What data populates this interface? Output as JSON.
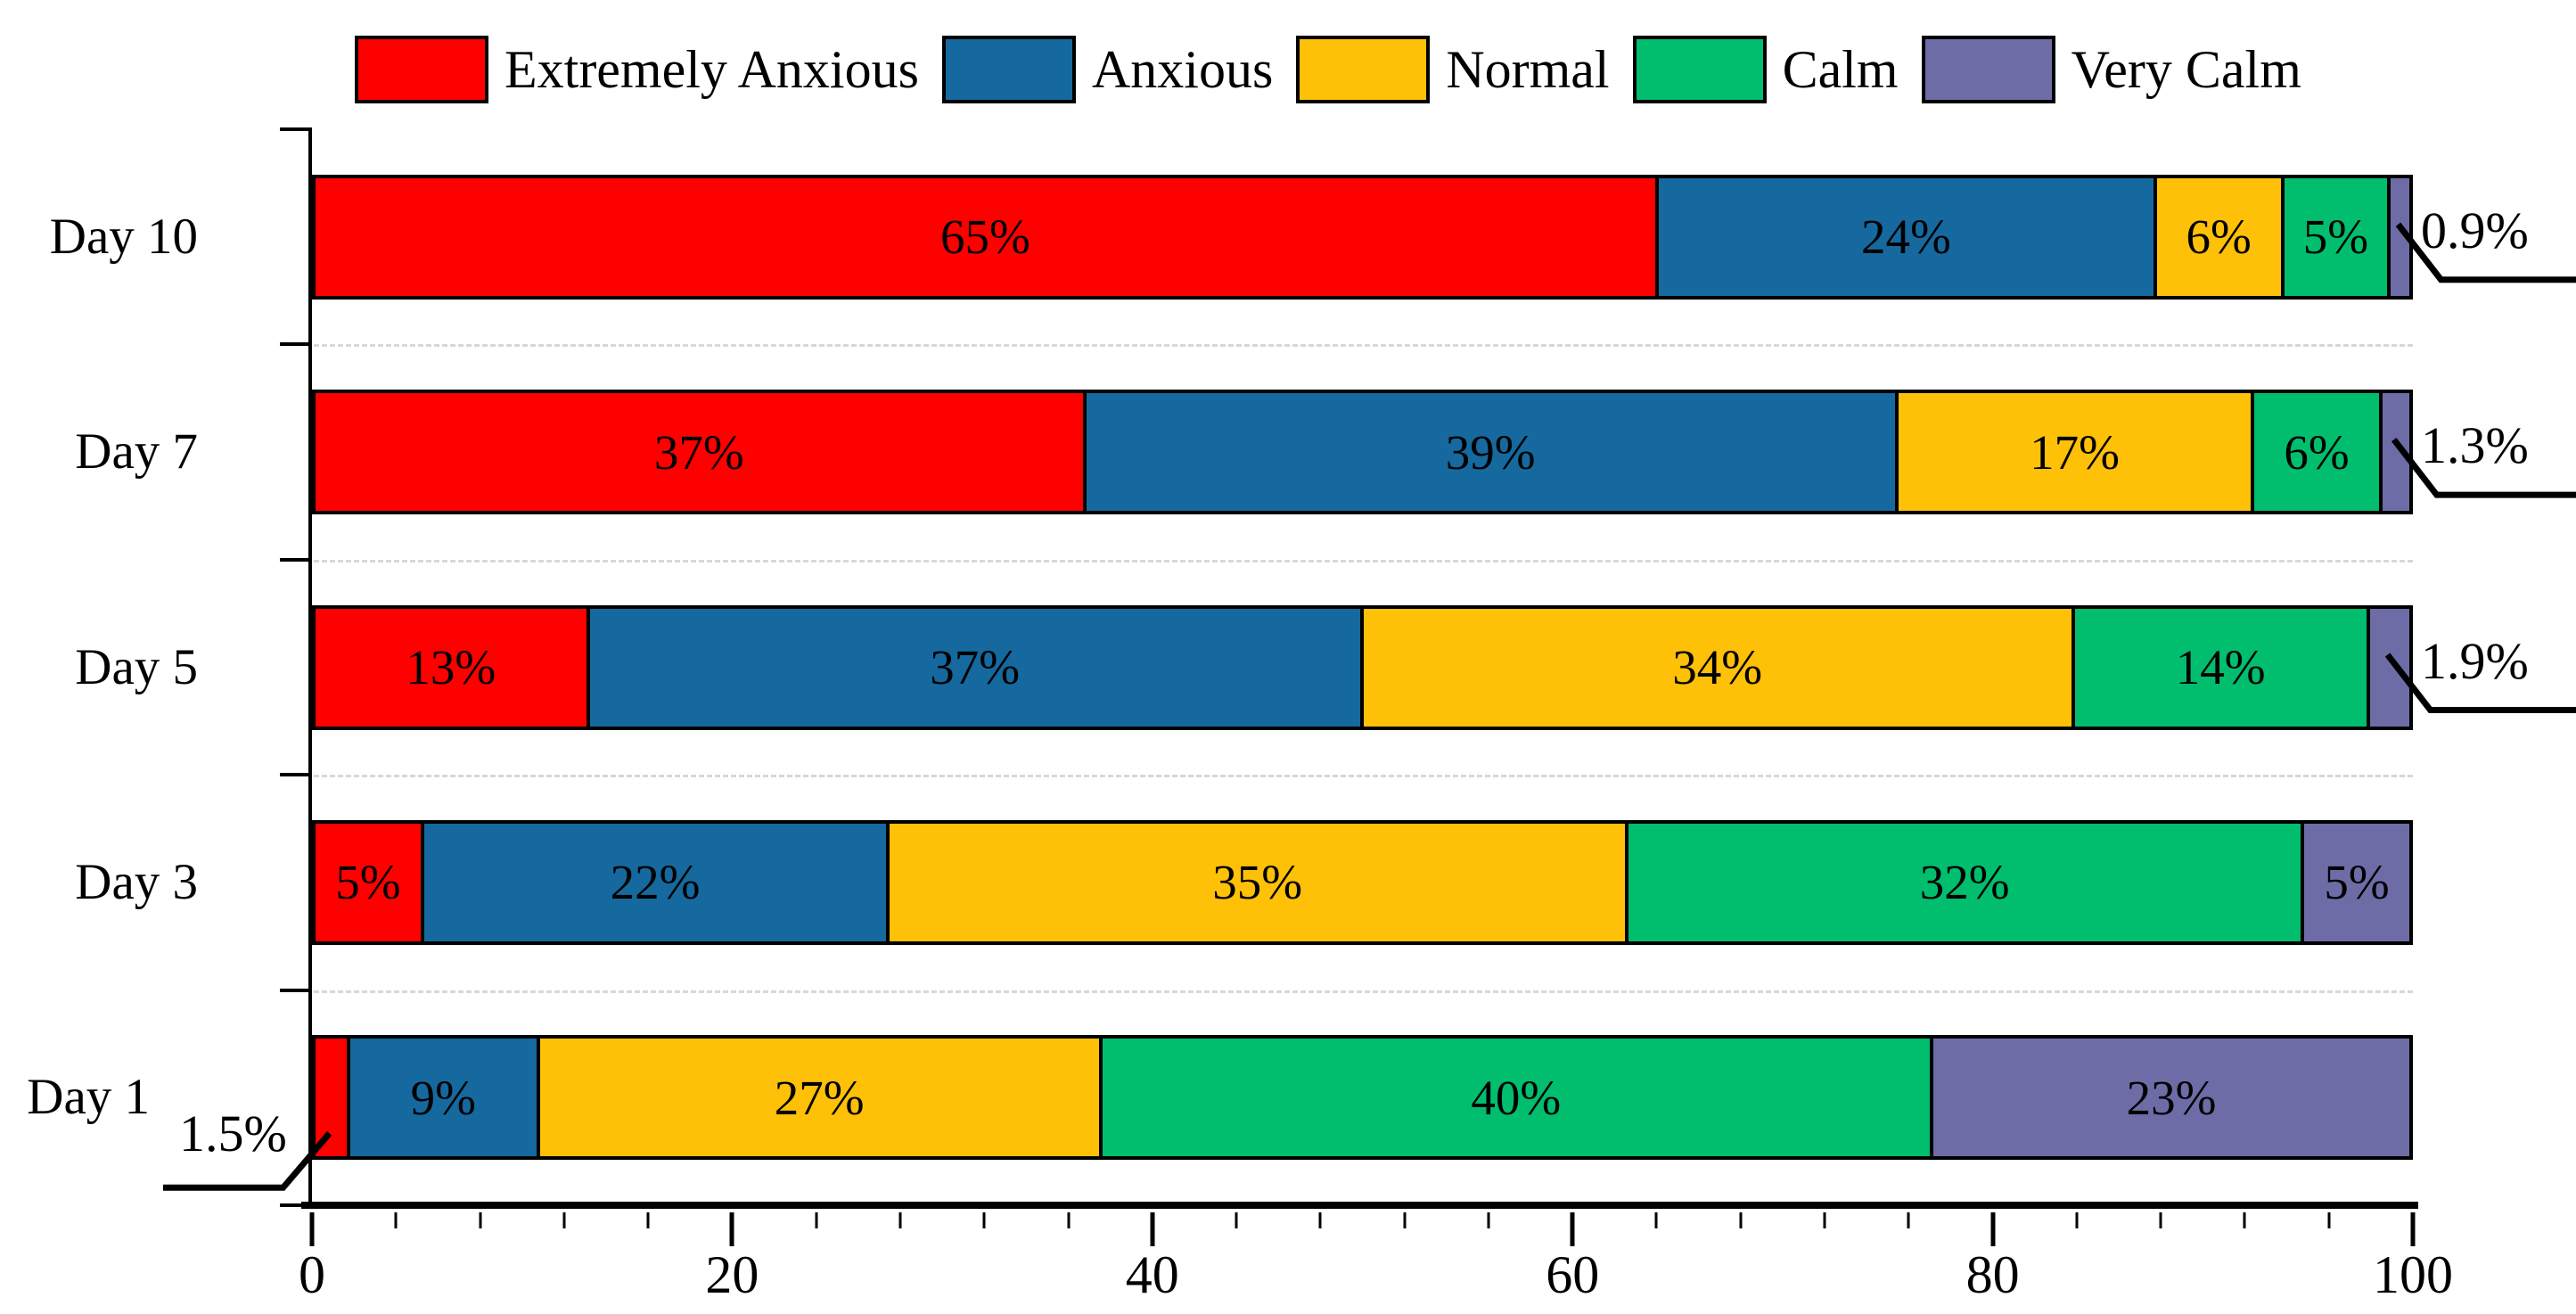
{
  "chart_data": {
    "type": "bar",
    "orientation": "horizontal-stacked",
    "title": "",
    "xlabel": "",
    "ylabel": "",
    "categories": [
      "Day 10",
      "Day 7",
      "Day 5",
      "Day 3",
      "Day 1"
    ],
    "series": [
      {
        "name": "Extremely Anxious",
        "color": "#fe0000",
        "values": [
          65,
          37,
          13,
          5,
          1.5
        ]
      },
      {
        "name": "Anxious",
        "color": "#15699e",
        "values": [
          24,
          39,
          37,
          22,
          9
        ]
      },
      {
        "name": "Normal",
        "color": "#ffc008",
        "values": [
          6,
          17,
          34,
          35,
          27
        ]
      },
      {
        "name": "Calm",
        "color": "#00be6e",
        "values": [
          5,
          6,
          14,
          32,
          40
        ]
      },
      {
        "name": "Very Calm",
        "color": "#6e6ca7",
        "values": [
          0.9,
          1.3,
          1.9,
          5,
          23
        ]
      }
    ],
    "segment_labels": [
      [
        "65%",
        "24%",
        "6%",
        "5%",
        ""
      ],
      [
        "37%",
        "39%",
        "17%",
        "6%",
        ""
      ],
      [
        "13%",
        "37%",
        "34%",
        "14%",
        ""
      ],
      [
        "5%",
        "22%",
        "35%",
        "32%",
        "5%"
      ],
      [
        "",
        "9%",
        "27%",
        "40%",
        "23%"
      ]
    ],
    "callouts": [
      {
        "category": "Day 10",
        "series": "Very Calm",
        "text": "0.9%",
        "side": "right"
      },
      {
        "category": "Day 7",
        "series": "Very Calm",
        "text": "1.3%",
        "side": "right"
      },
      {
        "category": "Day 5",
        "series": "Very Calm",
        "text": "1.9%",
        "side": "right"
      },
      {
        "category": "Day 1",
        "series": "Extremely Anxious",
        "text": "1.5%",
        "side": "left"
      }
    ],
    "xlim": [
      0,
      100
    ],
    "x_ticks": [
      "0",
      "20",
      "40",
      "60",
      "80",
      "100"
    ],
    "x_minor_tick_step": 4,
    "grid": "dashed-horizontal-between-categories",
    "legend_position": "top",
    "axis_color": "#000000",
    "gridline_color": "#d8d8d8"
  }
}
